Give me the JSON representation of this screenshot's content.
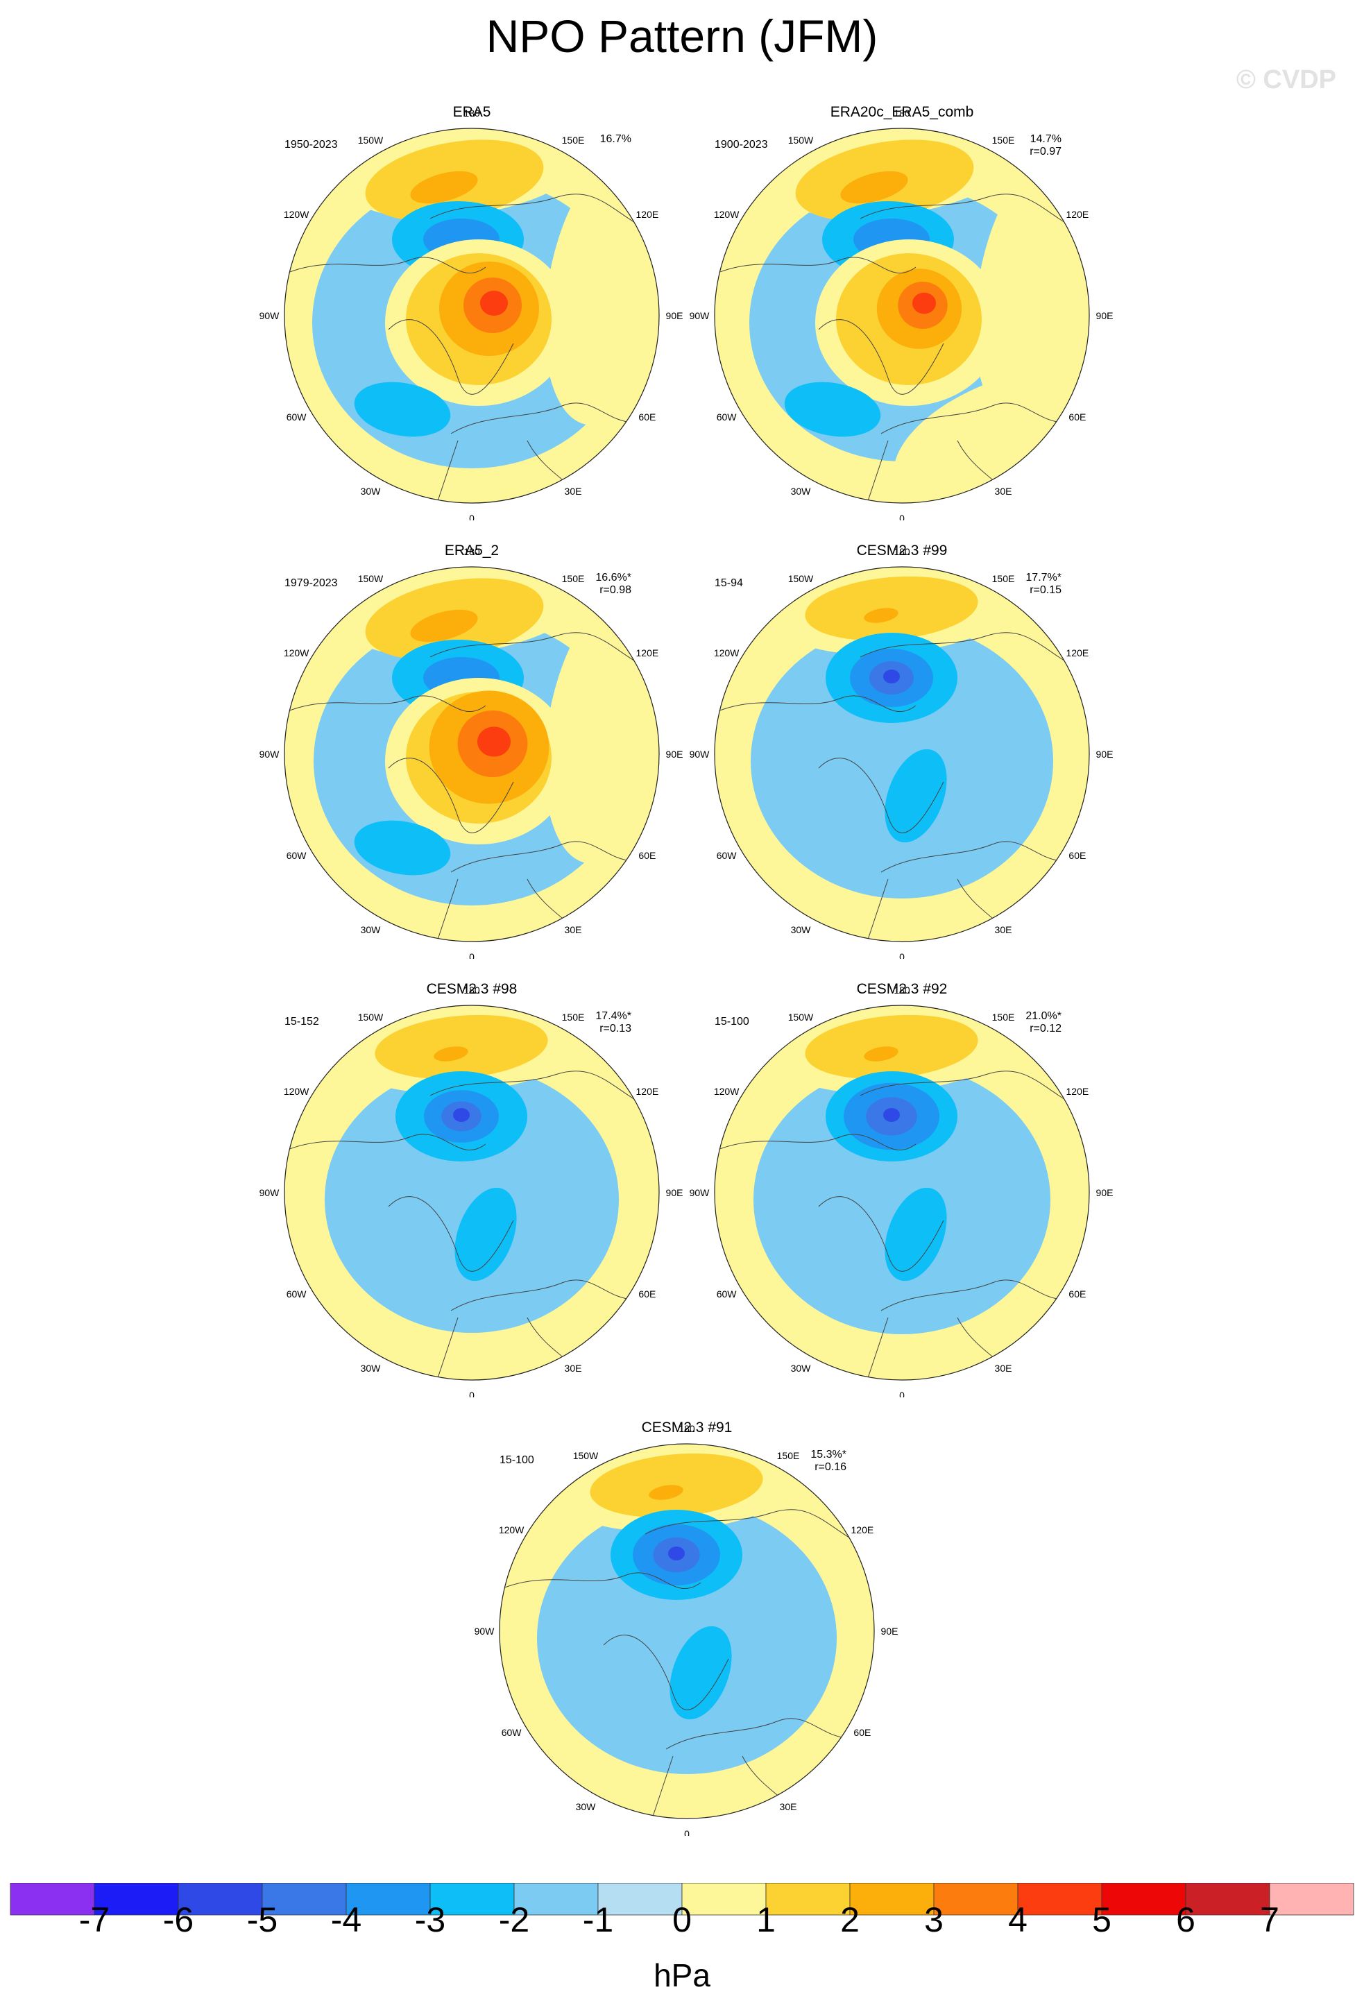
{
  "title": "NPO Pattern (JFM)",
  "watermark": "© CVDP",
  "units": "hPa",
  "lon_labels": [
    "180",
    "150E",
    "120E",
    "90E",
    "60E",
    "30E",
    "0",
    "30W",
    "60W",
    "90W",
    "120W",
    "150W"
  ],
  "colorbar": {
    "colors": [
      "#8b2ff0",
      "#1c1cf7",
      "#2f49e6",
      "#3a78e8",
      "#1f96f2",
      "#0dbef7",
      "#7ccbf3",
      "#b6def3",
      "#fdf79a",
      "#fcd233",
      "#fcae0a",
      "#fc7d0d",
      "#fc3d10",
      "#ee0707",
      "#cc2027",
      "#ffb3b3"
    ],
    "labels": [
      "-7",
      "-6",
      "-5",
      "-4",
      "-3",
      "-2",
      "-1",
      "0",
      "1",
      "2",
      "3",
      "4",
      "5",
      "6",
      "7"
    ]
  },
  "panels": [
    {
      "id": "era5",
      "title": "ERA5",
      "period": "1950-2023",
      "pct": "16.7%",
      "r": "",
      "type": "obs",
      "intensity": 1.0,
      "yellow_bias": 0.0
    },
    {
      "id": "era20c",
      "title": "ERA20c_ERA5_comb",
      "period": "1900-2023",
      "pct": "14.7%",
      "r": "r=0.97",
      "type": "obs",
      "intensity": 0.85,
      "yellow_bias": 0.25
    },
    {
      "id": "era5_2",
      "title": "ERA5_2",
      "period": "1979-2023",
      "pct": "16.6%*",
      "r": "r=0.98",
      "type": "obs",
      "intensity": 1.2,
      "yellow_bias": 0.05
    },
    {
      "id": "cesm99",
      "title": "CESM2.3 #99",
      "period": "15-94",
      "pct": "17.7%*",
      "r": "r=0.15",
      "type": "model",
      "intensity": 1.0,
      "yellow_bias": 0.3
    },
    {
      "id": "cesm98",
      "title": "CESM2.3 #98",
      "period": "15-152",
      "pct": "17.4%*",
      "r": "r=0.13",
      "type": "model",
      "intensity": 0.9,
      "yellow_bias": 0.45
    },
    {
      "id": "cesm92",
      "title": "CESM2.3 #92",
      "period": "15-100",
      "pct": "21.0%*",
      "r": "r=0.12",
      "type": "model",
      "intensity": 1.15,
      "yellow_bias": 0.4
    },
    {
      "id": "cesm91",
      "title": "CESM2.3 #91",
      "period": "15-100",
      "pct": "15.3%*",
      "r": "r=0.16",
      "type": "model",
      "intensity": 1.05,
      "yellow_bias": 0.35
    }
  ]
}
